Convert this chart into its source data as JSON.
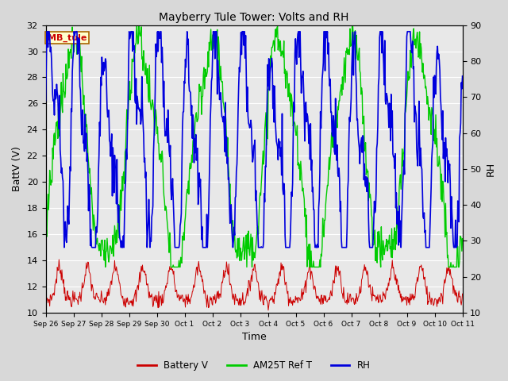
{
  "title": "Mayberry Tule Tower: Volts and RH",
  "xlabel": "Time",
  "ylabel_left": "BattV (V)",
  "ylabel_right": "RH",
  "station_label": "MB_tule",
  "ylim_left": [
    10,
    32
  ],
  "ylim_right": [
    10,
    90
  ],
  "yticks_left": [
    10,
    12,
    14,
    16,
    18,
    20,
    22,
    24,
    26,
    28,
    30,
    32
  ],
  "yticks_right": [
    10,
    20,
    30,
    40,
    50,
    60,
    70,
    80,
    90
  ],
  "xtick_labels": [
    "Sep 26",
    "Sep 27",
    "Sep 28",
    "Sep 29",
    "Sep 30",
    "Oct 1",
    "Oct 2",
    "Oct 3",
    "Oct 4",
    "Oct 5",
    "Oct 6",
    "Oct 7",
    "Oct 8",
    "Oct 9",
    "Oct 10",
    "Oct 11"
  ],
  "n_days": 15,
  "background_color": "#d8d8d8",
  "plot_bg_color": "#e8e8e8",
  "grid_color": "#ffffff",
  "line_colors": {
    "battery": "#cc0000",
    "am25t": "#00cc00",
    "rh": "#0000dd"
  },
  "line_widths": {
    "battery": 0.7,
    "am25t": 1.0,
    "rh": 1.2
  },
  "legend_labels": [
    "Battery V",
    "AM25T Ref T",
    "RH"
  ],
  "legend_colors": [
    "#cc0000",
    "#00cc00",
    "#0000dd"
  ],
  "figsize": [
    6.4,
    4.8
  ],
  "dpi": 100
}
